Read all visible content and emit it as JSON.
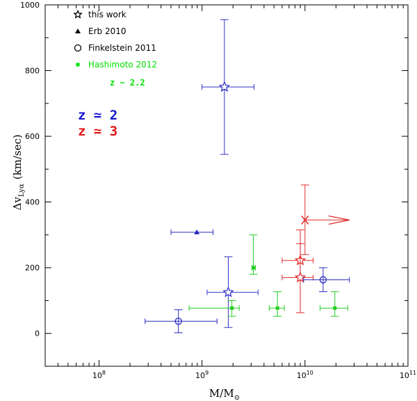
{
  "chart_data": {
    "type": "scatter",
    "xlabel": "M/M",
    "xlabel_sub": "⊙",
    "ylabel": "Δv",
    "ylabel_sub": "Lyα",
    "ylabel_unit": "(km/sec)",
    "x_scale": "log",
    "xlim": [
      30000000,
      100000000000
    ],
    "ylim": [
      -100,
      1000
    ],
    "x_ticks": [
      {
        "value": 100000000,
        "base": "10",
        "exp": "8"
      },
      {
        "value": 1000000000,
        "base": "10",
        "exp": "9"
      },
      {
        "value": 10000000000,
        "base": "10",
        "exp": "10"
      },
      {
        "value": 100000000000,
        "base": "10",
        "exp": "11"
      }
    ],
    "y_ticks": [
      0,
      200,
      400,
      600,
      800,
      1000
    ],
    "legend": [
      {
        "label": "this work",
        "marker": "star",
        "color": "#000000"
      },
      {
        "label": "Erb 2010",
        "marker": "triangle",
        "color": "#000000"
      },
      {
        "label": "Finkelstein 2011",
        "marker": "circle",
        "color": "#000000"
      },
      {
        "label": "Hashimoto 2012",
        "marker": "square",
        "color": "#00e000"
      }
    ],
    "annotations": [
      {
        "text": "z ~ 2.2",
        "color": "#00e000",
        "style": "small"
      },
      {
        "text": "z ≃ 2",
        "color": "#1515d0",
        "style": "big"
      },
      {
        "text": "z ≃ 3",
        "color": "#e01515",
        "style": "big"
      }
    ],
    "series": [
      {
        "name": "this work z≃2",
        "marker": "star",
        "color": "#3434c8",
        "points": [
          {
            "x": 1650000000,
            "y": 750,
            "xlo": 1000000000,
            "xhi": 3200000000,
            "ylo": 545,
            "yhi": 955
          },
          {
            "x": 1800000000,
            "y": 125,
            "xlo": 1120000000,
            "xhi": 3500000000,
            "ylo": 18,
            "yhi": 233
          }
        ]
      },
      {
        "name": "this work z≃3",
        "marker": "star",
        "color": "#e02a2a",
        "points": [
          {
            "x": 9000000000,
            "y": 222,
            "xlo": 6000000000,
            "xhi": 12000000000,
            "ylo": 170,
            "yhi": 273
          },
          {
            "x": 9000000000,
            "y": 170,
            "xlo": 6000000000,
            "xhi": 12000000000,
            "ylo": 63,
            "yhi": 315
          }
        ]
      },
      {
        "name": "this work z≃3 lower limit",
        "marker": "x",
        "color": "#e02a2a",
        "points": [
          {
            "x": 10000000000,
            "y": 345,
            "ylo": 240,
            "yhi": 452,
            "arrow_to_x": 27000000000
          }
        ]
      },
      {
        "name": "Erb 2010",
        "marker": "triangle",
        "color": "#2a2ac0",
        "points": [
          {
            "x": 890000000,
            "y": 308,
            "xlo": 500000000,
            "xhi": 1280000000
          }
        ]
      },
      {
        "name": "Finkelstein 2011",
        "marker": "circle",
        "color": "#2a2ac0",
        "points": [
          {
            "x": 590000000,
            "y": 37,
            "xlo": 280000000,
            "xhi": 1400000000,
            "ylo": 2,
            "yhi": 72
          },
          {
            "x": 15000000000,
            "y": 163,
            "xlo": 9700000000,
            "xhi": 27000000000,
            "ylo": 127,
            "yhi": 200
          }
        ]
      },
      {
        "name": "Hashimoto 2012",
        "marker": "square",
        "color": "#22d022",
        "points": [
          {
            "x": 1950000000,
            "y": 77,
            "xlo": 750000000,
            "xhi": 2300000000,
            "ylo": 52,
            "yhi": 100
          },
          {
            "x": 3150000000,
            "y": 200,
            "xlo": 3050000000,
            "xhi": 3300000000,
            "ylo": 180,
            "yhi": 300
          },
          {
            "x": 5400000000,
            "y": 77,
            "xlo": 4500000000,
            "xhi": 6300000000,
            "ylo": 52,
            "yhi": 127
          },
          {
            "x": 19500000000,
            "y": 77,
            "xlo": 14000000000,
            "xhi": 26000000000,
            "ylo": 52,
            "yhi": 127
          }
        ]
      }
    ]
  }
}
